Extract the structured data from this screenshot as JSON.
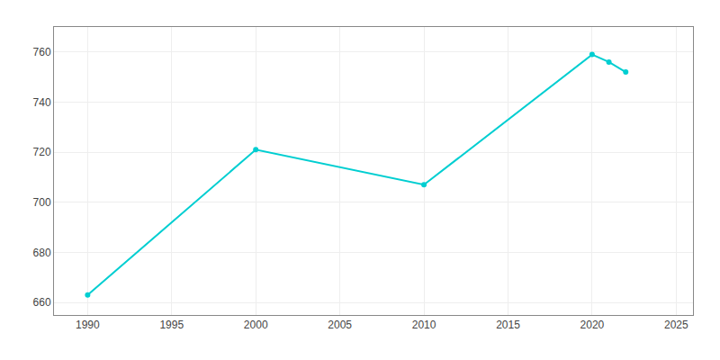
{
  "chart_data": {
    "type": "line",
    "x": [
      1990,
      2000,
      2010,
      2020,
      2021,
      2022
    ],
    "values": [
      663,
      721,
      707,
      759,
      756,
      752
    ],
    "color": "#00CED1",
    "marker": "circle",
    "xlim": [
      1988,
      2026
    ],
    "ylim": [
      655,
      770
    ],
    "xticks": [
      1990,
      1995,
      2000,
      2005,
      2010,
      2015,
      2020,
      2025
    ],
    "yticks": [
      660,
      680,
      700,
      720,
      740,
      760
    ],
    "grid": true
  }
}
